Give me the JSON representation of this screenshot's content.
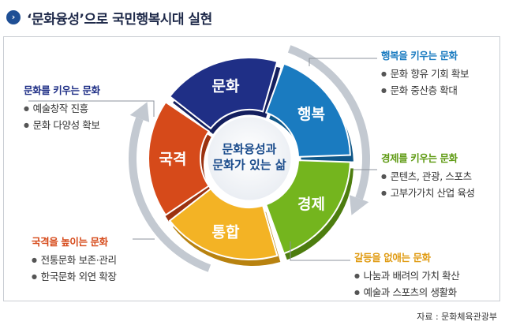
{
  "title": "‘문화융성’으로 국민행복시대 실현",
  "center_text": [
    "문화융성과",
    "문화가 있는 삶"
  ],
  "segments": [
    "문화",
    "행복",
    "경제",
    "통합",
    "국격"
  ],
  "colors": {
    "culture": "#1f2f86",
    "happiness": "#1a7bc0",
    "economy": "#74b51e",
    "integration": "#f3b325",
    "dignity": "#d64a1a",
    "title": "#1f2a4a"
  },
  "boxes": {
    "culture": {
      "head": "문화를 키우는 문화",
      "items": [
        "예술창작 진흥",
        "문화 다양성 확보"
      ]
    },
    "happiness": {
      "head": "행복을 키우는 문화",
      "items": [
        "문화 향유 기회 확보",
        "문화 중산층 확대"
      ]
    },
    "economy": {
      "head": "경제를 키우는 문화",
      "items": [
        "콘텐츠, 관광, 스포츠",
        "고부가가치 산업 육성"
      ]
    },
    "integration": {
      "head": "갈등을 없애는 문화",
      "items": [
        "나눔과 배려의 가치 확산",
        "예술과 스포츠의 생활화"
      ]
    },
    "dignity": {
      "head": "국격을 높이는 문화",
      "items": [
        "전통문화 보존·관리",
        "한국문화 외연 확장"
      ]
    }
  },
  "source": "자료 : 문화체육관광부"
}
